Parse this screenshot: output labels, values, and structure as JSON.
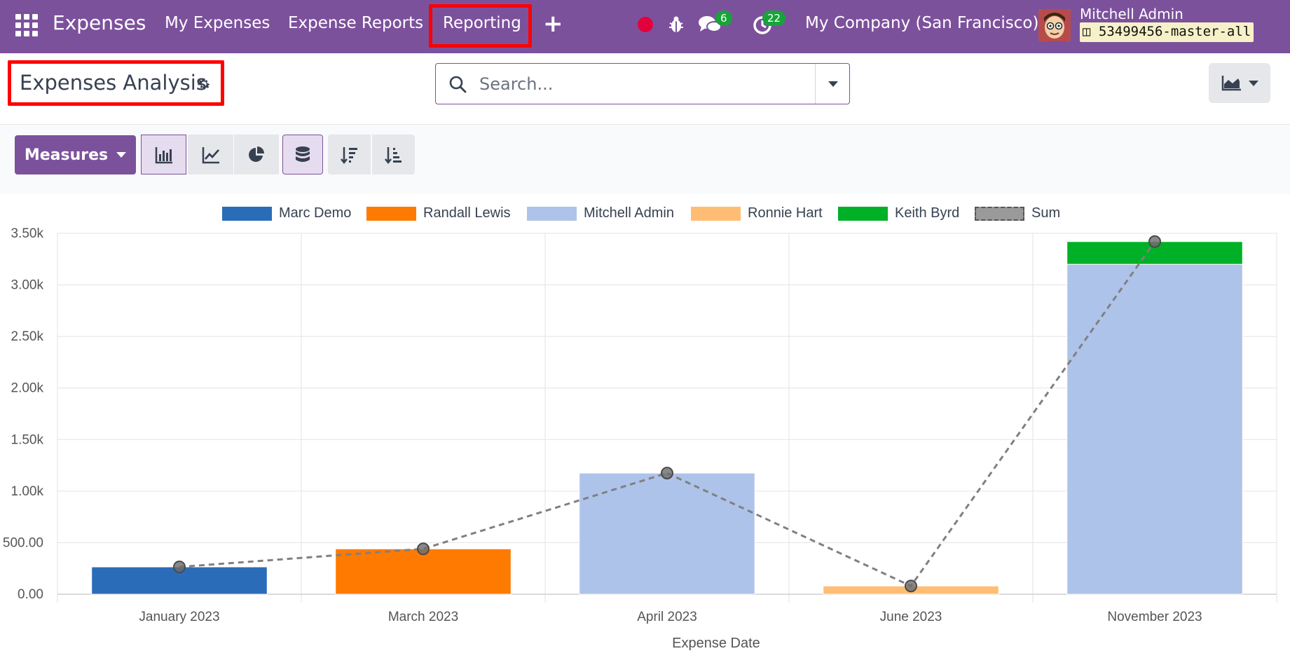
{
  "navbar": {
    "app_name": "Expenses",
    "menu": [
      "My Expenses",
      "Expense Reports",
      "Reporting"
    ],
    "plus": "+",
    "chat_count": "6",
    "activity_count": "22",
    "company": "My Company (San Francisco)",
    "user_name": "Mitchell Admin",
    "database": "53499456-master-all",
    "accent": "#7c519c"
  },
  "control": {
    "title": "Expenses Analysis",
    "search_placeholder": "Search..."
  },
  "toolbar": {
    "measures_label": "Measures",
    "buttons": [
      "bar-chart-icon",
      "line-chart-icon",
      "pie-chart-icon",
      "stacked-icon",
      "sort-descending-icon",
      "sort-ascending-icon"
    ]
  },
  "chart_data": {
    "type": "bar",
    "stacked": true,
    "xlabel": "Expense Date",
    "ylabel": "",
    "ylim": [
      0,
      3500
    ],
    "yticks": [
      "0.00",
      "500.00",
      "1.00k",
      "1.50k",
      "2.00k",
      "2.50k",
      "3.00k",
      "3.50k"
    ],
    "categories": [
      "January 2023",
      "March 2023",
      "April 2023",
      "June 2023",
      "November 2023"
    ],
    "series": [
      {
        "name": "Marc Demo",
        "color": "#2b6cb8",
        "values": [
          265,
          0,
          0,
          0,
          0
        ]
      },
      {
        "name": "Randall Lewis",
        "color": "#ff7a00",
        "values": [
          0,
          440,
          0,
          0,
          0
        ]
      },
      {
        "name": "Mitchell Admin",
        "color": "#aec3ea",
        "values": [
          0,
          0,
          1175,
          0,
          3200
        ]
      },
      {
        "name": "Ronnie Hart",
        "color": "#ffbd73",
        "values": [
          0,
          0,
          0,
          80,
          0
        ]
      },
      {
        "name": "Keith Byrd",
        "color": "#00b026",
        "values": [
          0,
          0,
          0,
          0,
          220
        ]
      }
    ],
    "sum_line": {
      "name": "Sum",
      "color": "#808080",
      "values": [
        265,
        440,
        1175,
        80,
        3420
      ]
    },
    "legend_position": "top",
    "grid": true
  }
}
